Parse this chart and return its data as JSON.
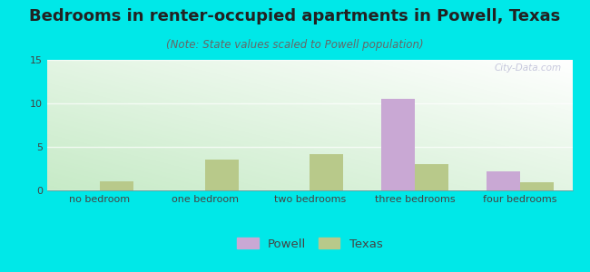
{
  "title": "Bedrooms in renter-occupied apartments in Powell, Texas",
  "subtitle": "(Note: State values scaled to Powell population)",
  "categories": [
    "no bedroom",
    "one bedroom",
    "two bedrooms",
    "three bedrooms",
    "four bedrooms"
  ],
  "powell_values": [
    0,
    0,
    0,
    10.5,
    2.2
  ],
  "texas_values": [
    1.0,
    3.5,
    4.2,
    3.0,
    0.9
  ],
  "powell_color": "#c9a8d4",
  "texas_color": "#b8c98a",
  "ylim": [
    0,
    15
  ],
  "yticks": [
    0,
    5,
    10,
    15
  ],
  "background_color": "#00e8e8",
  "bar_width": 0.32,
  "legend_powell": "Powell",
  "legend_texas": "Texas",
  "watermark": "City-Data.com",
  "title_fontsize": 13,
  "subtitle_fontsize": 8.5,
  "tick_fontsize": 8,
  "legend_fontsize": 9.5
}
